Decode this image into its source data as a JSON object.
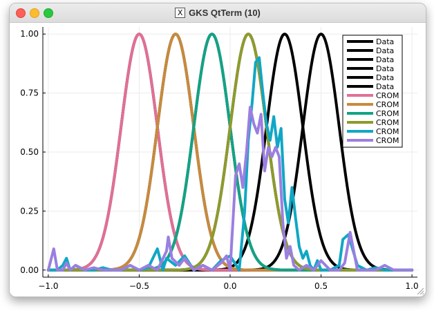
{
  "window": {
    "title": "GKS QtTerm (10)",
    "x11_icon": "X"
  },
  "chart_data": {
    "type": "line",
    "title": "",
    "xlabel": "",
    "ylabel": "",
    "xlim": [
      -1.03,
      1.03
    ],
    "ylim": [
      -0.03,
      1.03
    ],
    "x_ticks": [
      -1.0,
      -0.5,
      0.0,
      0.5,
      1.0
    ],
    "x_tick_labels": [
      "−1.0",
      "−0.5",
      "0.0",
      "0.5",
      "1.0"
    ],
    "y_ticks": [
      0.0,
      0.25,
      0.5,
      0.75,
      1.0
    ],
    "y_tick_labels": [
      "0.00",
      "0.25",
      "0.50",
      "0.75",
      "1.00"
    ],
    "grid": true,
    "legend_position": "top-right",
    "series": [
      {
        "name": "Data",
        "color": "#000000",
        "kind": "gaussian",
        "center": -0.5,
        "sigma": 0.1
      },
      {
        "name": "Data",
        "color": "#000000",
        "kind": "gaussian",
        "center": -0.3,
        "sigma": 0.1
      },
      {
        "name": "Data",
        "color": "#000000",
        "kind": "gaussian",
        "center": -0.1,
        "sigma": 0.1
      },
      {
        "name": "Data",
        "color": "#000000",
        "kind": "gaussian",
        "center": 0.1,
        "sigma": 0.1
      },
      {
        "name": "Data",
        "color": "#000000",
        "kind": "gaussian",
        "center": 0.3,
        "sigma": 0.1
      },
      {
        "name": "Data",
        "color": "#000000",
        "kind": "gaussian",
        "center": 0.5,
        "sigma": 0.1
      },
      {
        "name": "CROM",
        "color": "#e26f96",
        "kind": "gaussian",
        "center": -0.5,
        "sigma": 0.1
      },
      {
        "name": "CROM",
        "color": "#c88a3c",
        "kind": "gaussian",
        "center": -0.3,
        "sigma": 0.1
      },
      {
        "name": "CROM",
        "color": "#12a386",
        "kind": "gaussian",
        "center": -0.1,
        "sigma": 0.1
      },
      {
        "name": "CROM",
        "color": "#8e9b2c",
        "kind": "gaussian",
        "center": 0.1,
        "sigma": 0.1
      },
      {
        "name": "CROM",
        "color": "#10a7c5",
        "kind": "points",
        "x": [
          -1.0,
          -0.95,
          -0.92,
          -0.9,
          -0.88,
          -0.85,
          -0.8,
          -0.75,
          -0.7,
          -0.65,
          -0.6,
          -0.55,
          -0.5,
          -0.45,
          -0.4,
          -0.37,
          -0.35,
          -0.3,
          -0.25,
          -0.2,
          -0.15,
          -0.1,
          -0.05,
          0.0,
          0.05,
          0.08,
          0.1,
          0.12,
          0.14,
          0.16,
          0.18,
          0.2,
          0.22,
          0.24,
          0.26,
          0.28,
          0.3,
          0.32,
          0.34,
          0.36,
          0.38,
          0.4,
          0.42,
          0.44,
          0.46,
          0.48,
          0.5,
          0.55,
          0.6,
          0.62,
          0.65,
          0.7,
          0.75,
          0.8,
          0.85,
          0.9,
          0.95,
          1.0
        ],
        "y": [
          0.0,
          0.0,
          0.02,
          0.05,
          0.0,
          0.02,
          0.0,
          0.0,
          0.01,
          0.0,
          0.0,
          0.02,
          0.0,
          0.01,
          0.09,
          0.0,
          0.05,
          0.02,
          0.06,
          0.0,
          0.02,
          0.0,
          0.04,
          0.06,
          0.0,
          0.25,
          0.55,
          0.7,
          0.88,
          0.9,
          0.75,
          0.62,
          0.55,
          0.65,
          0.52,
          0.6,
          0.3,
          0.2,
          0.35,
          0.22,
          0.1,
          0.05,
          0.08,
          0.02,
          0.0,
          0.04,
          0.0,
          0.0,
          0.02,
          0.13,
          0.15,
          0.02,
          0.0,
          0.01,
          0.0,
          0.0,
          0.0,
          0.0
        ]
      },
      {
        "name": "CROM",
        "color": "#9a7fe0",
        "kind": "points",
        "x": [
          -1.0,
          -0.97,
          -0.95,
          -0.92,
          -0.9,
          -0.88,
          -0.85,
          -0.8,
          -0.75,
          -0.7,
          -0.65,
          -0.6,
          -0.55,
          -0.5,
          -0.45,
          -0.4,
          -0.35,
          -0.34,
          -0.32,
          -0.28,
          -0.25,
          -0.2,
          -0.15,
          -0.1,
          -0.05,
          -0.02,
          0.0,
          0.03,
          0.05,
          0.07,
          0.09,
          0.11,
          0.13,
          0.15,
          0.17,
          0.19,
          0.21,
          0.23,
          0.25,
          0.27,
          0.29,
          0.31,
          0.33,
          0.35,
          0.38,
          0.42,
          0.46,
          0.5,
          0.55,
          0.6,
          0.63,
          0.66,
          0.7,
          0.75,
          0.8,
          0.85,
          0.9,
          0.95,
          1.0
        ],
        "y": [
          0.0,
          0.09,
          0.0,
          0.0,
          0.03,
          0.0,
          0.02,
          0.0,
          0.01,
          0.0,
          0.0,
          0.0,
          0.02,
          0.0,
          0.02,
          0.0,
          0.08,
          0.14,
          0.05,
          0.02,
          0.05,
          0.0,
          0.02,
          0.0,
          0.03,
          0.06,
          0.0,
          0.4,
          0.45,
          0.35,
          0.5,
          0.69,
          0.62,
          0.58,
          0.66,
          0.42,
          0.52,
          0.48,
          0.52,
          0.48,
          0.2,
          0.05,
          0.1,
          0.02,
          0.0,
          0.02,
          0.0,
          0.04,
          0.0,
          0.0,
          0.03,
          0.16,
          0.0,
          0.0,
          0.0,
          0.02,
          0.0,
          0.0,
          0.0
        ]
      }
    ]
  }
}
